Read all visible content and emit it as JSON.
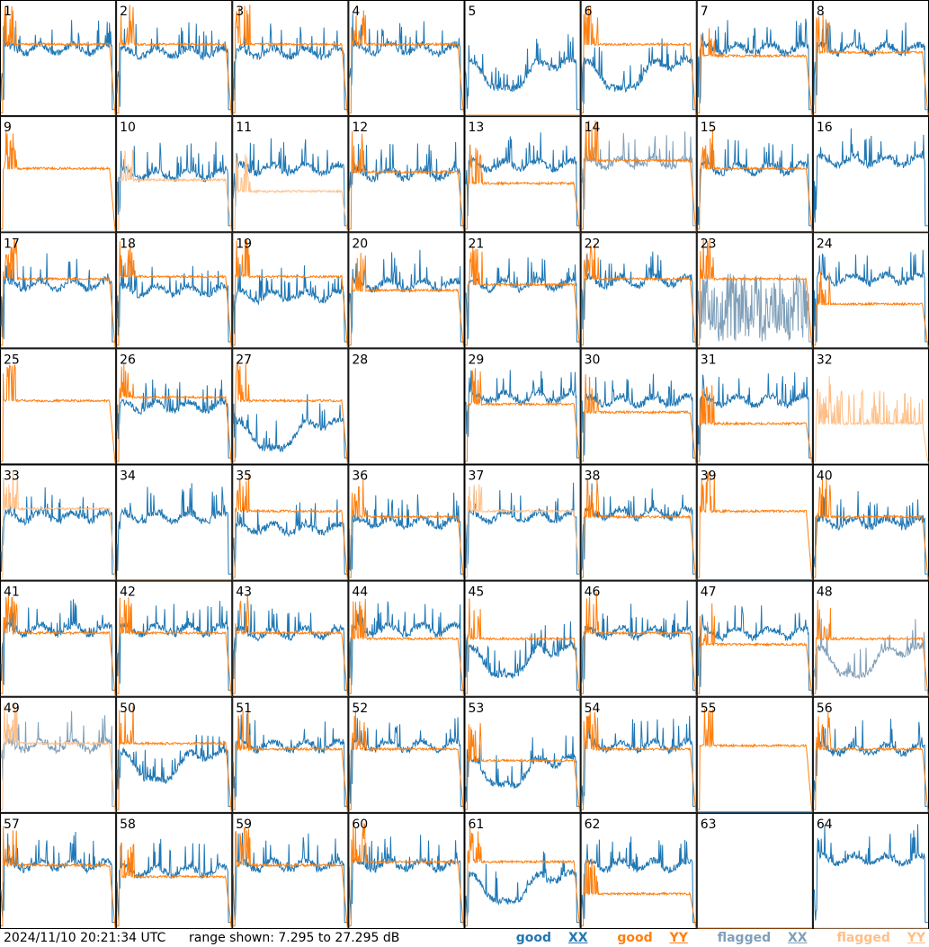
{
  "chart_data": {
    "type": "line",
    "layout": "small-multiples 8x8",
    "timestamp": "2024/11/10 20:21:34 UTC",
    "range_label": "range shown: 7.295 to 27.295 dB",
    "range_db": [
      7.295,
      27.295
    ],
    "legend": [
      {
        "name": "good",
        "pol": "XX",
        "color": "#1f77b4"
      },
      {
        "name": "good",
        "pol": "YY",
        "color": "#ff7f0e"
      },
      {
        "name": "flagged",
        "pol": "XX",
        "color": "#7f9fb9"
      },
      {
        "name": "flagged",
        "pol": "YY",
        "color": "#ffbf87"
      }
    ],
    "panels": [
      {
        "id": "1",
        "xx": "good",
        "yy": "good",
        "xx_level": 0.58,
        "yy_level": 0.62,
        "shape": "normal"
      },
      {
        "id": "2",
        "xx": "good",
        "yy": "good",
        "xx_level": 0.55,
        "yy_level": 0.62,
        "shape": "normal"
      },
      {
        "id": "3",
        "xx": "good",
        "yy": "good",
        "xx_level": 0.55,
        "yy_level": 0.62,
        "shape": "normal"
      },
      {
        "id": "4",
        "xx": "good",
        "yy": "good",
        "xx_level": 0.58,
        "yy_level": 0.62,
        "shape": "normal"
      },
      {
        "id": "5",
        "xx": "good",
        "yy": "good",
        "xx_level": 0.45,
        "yy_level": 0.0,
        "shape": "xx-dip"
      },
      {
        "id": "6",
        "xx": "good",
        "yy": "good",
        "xx_level": 0.45,
        "yy_level": 0.62,
        "shape": "xx-dip"
      },
      {
        "id": "7",
        "xx": "good",
        "yy": "good",
        "xx_level": 0.58,
        "yy_level": 0.52,
        "shape": "normal"
      },
      {
        "id": "8",
        "xx": "good",
        "yy": "good",
        "xx_level": 0.58,
        "yy_level": 0.55,
        "shape": "normal"
      },
      {
        "id": "9",
        "xx": "flagged",
        "yy": "good",
        "xx_level": 0.0,
        "yy_level": 0.55,
        "shape": "xx-dead"
      },
      {
        "id": "10",
        "xx": "good",
        "yy": "flagged",
        "xx_level": 0.5,
        "yy_level": 0.45,
        "shape": "normal"
      },
      {
        "id": "11",
        "xx": "good",
        "yy": "flagged",
        "xx_level": 0.55,
        "yy_level": 0.35,
        "shape": "normal"
      },
      {
        "id": "12",
        "xx": "good",
        "yy": "good",
        "xx_level": 0.5,
        "yy_level": 0.52,
        "shape": "normal"
      },
      {
        "id": "13",
        "xx": "good",
        "yy": "good",
        "xx_level": 0.58,
        "yy_level": 0.42,
        "shape": "normal"
      },
      {
        "id": "14",
        "xx": "flagged",
        "yy": "good",
        "xx_level": 0.6,
        "yy_level": 0.62,
        "shape": "normal"
      },
      {
        "id": "15",
        "xx": "good",
        "yy": "good",
        "xx_level": 0.55,
        "yy_level": 0.55,
        "shape": "normal"
      },
      {
        "id": "16",
        "xx": "good",
        "yy": "flagged",
        "xx_level": 0.62,
        "yy_level": 0.0,
        "shape": "yy-dead"
      },
      {
        "id": "17",
        "xx": "good",
        "yy": "good",
        "xx_level": 0.55,
        "yy_level": 0.6,
        "shape": "normal"
      },
      {
        "id": "18",
        "xx": "good",
        "yy": "good",
        "xx_level": 0.5,
        "yy_level": 0.62,
        "shape": "normal"
      },
      {
        "id": "19",
        "xx": "good",
        "yy": "good",
        "xx_level": 0.45,
        "yy_level": 0.62,
        "shape": "normal"
      },
      {
        "id": "20",
        "xx": "good",
        "yy": "good",
        "xx_level": 0.55,
        "yy_level": 0.5,
        "shape": "normal"
      },
      {
        "id": "21",
        "xx": "good",
        "yy": "good",
        "xx_level": 0.55,
        "yy_level": 0.55,
        "shape": "normal"
      },
      {
        "id": "22",
        "xx": "good",
        "yy": "good",
        "xx_level": 0.58,
        "yy_level": 0.6,
        "shape": "normal"
      },
      {
        "id": "23",
        "xx": "flagged",
        "yy": "good",
        "xx_level": 0.3,
        "yy_level": 0.6,
        "shape": "xx-noisy"
      },
      {
        "id": "24",
        "xx": "good",
        "yy": "good",
        "xx_level": 0.6,
        "yy_level": 0.38,
        "shape": "normal"
      },
      {
        "id": "25",
        "xx": "good",
        "yy": "good",
        "xx_level": 0.0,
        "yy_level": 0.55,
        "shape": "xx-dead"
      },
      {
        "id": "26",
        "xx": "good",
        "yy": "good",
        "xx_level": 0.5,
        "yy_level": 0.58,
        "shape": "normal"
      },
      {
        "id": "27",
        "xx": "good",
        "yy": "good",
        "xx_level": 0.35,
        "yy_level": 0.55,
        "shape": "xx-dip"
      },
      {
        "id": "28",
        "xx": "good",
        "yy": "good",
        "xx_level": 0.0,
        "yy_level": 0.0,
        "shape": "both-dead"
      },
      {
        "id": "29",
        "xx": "good",
        "yy": "good",
        "xx_level": 0.58,
        "yy_level": 0.52,
        "shape": "normal"
      },
      {
        "id": "30",
        "xx": "good",
        "yy": "good",
        "xx_level": 0.55,
        "yy_level": 0.45,
        "shape": "normal"
      },
      {
        "id": "31",
        "xx": "good",
        "yy": "good",
        "xx_level": 0.55,
        "yy_level": 0.35,
        "shape": "normal"
      },
      {
        "id": "32",
        "xx": "flagged",
        "yy": "flagged",
        "xx_level": 0.0,
        "yy_level": 0.35,
        "shape": "yy-noisy"
      },
      {
        "id": "33",
        "xx": "good",
        "yy": "flagged",
        "xx_level": 0.55,
        "yy_level": 0.62,
        "shape": "normal"
      },
      {
        "id": "34",
        "xx": "good",
        "yy": "good",
        "xx_level": 0.55,
        "yy_level": 0.0,
        "shape": "yy-dead"
      },
      {
        "id": "35",
        "xx": "good",
        "yy": "good",
        "xx_level": 0.45,
        "yy_level": 0.6,
        "shape": "normal"
      },
      {
        "id": "36",
        "xx": "good",
        "yy": "good",
        "xx_level": 0.5,
        "yy_level": 0.55,
        "shape": "normal"
      },
      {
        "id": "37",
        "xx": "good",
        "yy": "flagged",
        "xx_level": 0.55,
        "yy_level": 0.6,
        "shape": "normal"
      },
      {
        "id": "38",
        "xx": "good",
        "yy": "good",
        "xx_level": 0.58,
        "yy_level": 0.55,
        "shape": "normal"
      },
      {
        "id": "39",
        "xx": "good",
        "yy": "good",
        "xx_level": 0.0,
        "yy_level": 0.6,
        "shape": "xx-dead"
      },
      {
        "id": "40",
        "xx": "good",
        "yy": "good",
        "xx_level": 0.5,
        "yy_level": 0.55,
        "shape": "normal"
      },
      {
        "id": "41",
        "xx": "good",
        "yy": "good",
        "xx_level": 0.58,
        "yy_level": 0.55,
        "shape": "normal"
      },
      {
        "id": "42",
        "xx": "good",
        "yy": "good",
        "xx_level": 0.58,
        "yy_level": 0.55,
        "shape": "normal"
      },
      {
        "id": "43",
        "xx": "good",
        "yy": "good",
        "xx_level": 0.55,
        "yy_level": 0.55,
        "shape": "normal"
      },
      {
        "id": "44",
        "xx": "good",
        "yy": "good",
        "xx_level": 0.58,
        "yy_level": 0.5,
        "shape": "normal"
      },
      {
        "id": "45",
        "xx": "good",
        "yy": "good",
        "xx_level": 0.4,
        "yy_level": 0.5,
        "shape": "xx-dip"
      },
      {
        "id": "46",
        "xx": "good",
        "yy": "good",
        "xx_level": 0.55,
        "yy_level": 0.55,
        "shape": "normal"
      },
      {
        "id": "47",
        "xx": "good",
        "yy": "good",
        "xx_level": 0.55,
        "yy_level": 0.45,
        "shape": "normal"
      },
      {
        "id": "48",
        "xx": "flagged",
        "yy": "good",
        "xx_level": 0.4,
        "yy_level": 0.5,
        "shape": "xx-dip"
      },
      {
        "id": "49",
        "xx": "flagged",
        "yy": "flagged",
        "xx_level": 0.58,
        "yy_level": 0.6,
        "shape": "normal"
      },
      {
        "id": "50",
        "xx": "good",
        "yy": "good",
        "xx_level": 0.5,
        "yy_level": 0.6,
        "shape": "xx-dip"
      },
      {
        "id": "51",
        "xx": "good",
        "yy": "good",
        "xx_level": 0.58,
        "yy_level": 0.55,
        "shape": "normal"
      },
      {
        "id": "52",
        "xx": "good",
        "yy": "good",
        "xx_level": 0.58,
        "yy_level": 0.55,
        "shape": "normal"
      },
      {
        "id": "53",
        "xx": "good",
        "yy": "good",
        "xx_level": 0.45,
        "yy_level": 0.45,
        "shape": "xx-dip"
      },
      {
        "id": "54",
        "xx": "good",
        "yy": "good",
        "xx_level": 0.58,
        "yy_level": 0.55,
        "shape": "normal"
      },
      {
        "id": "55",
        "xx": "good",
        "yy": "good",
        "xx_level": 0.0,
        "yy_level": 0.58,
        "shape": "xx-dead"
      },
      {
        "id": "56",
        "xx": "good",
        "yy": "good",
        "xx_level": 0.55,
        "yy_level": 0.55,
        "shape": "normal"
      },
      {
        "id": "57",
        "xx": "good",
        "yy": "good",
        "xx_level": 0.55,
        "yy_level": 0.55,
        "shape": "normal"
      },
      {
        "id": "58",
        "xx": "good",
        "yy": "good",
        "xx_level": 0.5,
        "yy_level": 0.45,
        "shape": "normal"
      },
      {
        "id": "59",
        "xx": "good",
        "yy": "good",
        "xx_level": 0.55,
        "yy_level": 0.55,
        "shape": "normal"
      },
      {
        "id": "60",
        "xx": "good",
        "yy": "good",
        "xx_level": 0.55,
        "yy_level": 0.58,
        "shape": "normal"
      },
      {
        "id": "61",
        "xx": "good",
        "yy": "good",
        "xx_level": 0.45,
        "yy_level": 0.58,
        "shape": "xx-dip"
      },
      {
        "id": "62",
        "xx": "good",
        "yy": "good",
        "xx_level": 0.55,
        "yy_level": 0.3,
        "shape": "normal"
      },
      {
        "id": "63",
        "xx": "good",
        "yy": "good",
        "xx_level": 0.0,
        "yy_level": 0.0,
        "shape": "both-dead"
      },
      {
        "id": "64",
        "xx": "good",
        "yy": "flagged",
        "xx_level": 0.6,
        "yy_level": 0.0,
        "shape": "yy-dead"
      }
    ]
  }
}
